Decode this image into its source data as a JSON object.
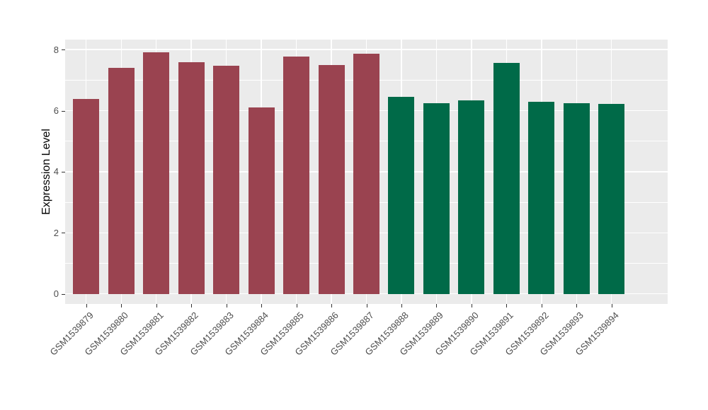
{
  "figure": {
    "background": "#FFFFFF",
    "panel_background": "#EBEBEB",
    "gridline_color": "#FFFFFF",
    "axis_text_color": "#4D4D4D",
    "axis_title_color": "#000000",
    "tick_mark_color": "#333333"
  },
  "chart_data": {
    "type": "bar",
    "title": "",
    "xlabel": "",
    "ylabel": "Expression Level",
    "categories": [
      "GSM1539879",
      "GSM1539880",
      "GSM1539881",
      "GSM1539882",
      "GSM1539883",
      "GSM1539884",
      "GSM1539885",
      "GSM1539886",
      "GSM1539887",
      "GSM1539888",
      "GSM1539889",
      "GSM1539890",
      "GSM1539891",
      "GSM1539892",
      "GSM1539893",
      "GSM1539894"
    ],
    "values": [
      6.38,
      7.41,
      7.91,
      7.58,
      7.48,
      6.1,
      7.76,
      7.49,
      7.86,
      6.44,
      6.25,
      6.34,
      7.57,
      6.3,
      6.25,
      6.21
    ],
    "bar_colors": [
      "#9A4350",
      "#9A4350",
      "#9A4350",
      "#9A4350",
      "#9A4350",
      "#9A4350",
      "#9A4350",
      "#9A4350",
      "#9A4350",
      "#006A48",
      "#006A48",
      "#006A48",
      "#006A48",
      "#006A48",
      "#006A48",
      "#006A48"
    ],
    "groups": [
      {
        "color": "#9A4350",
        "first_sample": "GSM1539879",
        "last_sample": "GSM1539887"
      },
      {
        "color": "#006A48",
        "first_sample": "GSM1539888",
        "last_sample": "GSM1539894"
      }
    ],
    "ylim": [
      0,
      8
    ],
    "yticks": [
      "0",
      "2",
      "4",
      "6",
      "8"
    ],
    "ytick_values": [
      0,
      2,
      4,
      6,
      8
    ],
    "minor_ytick_values": [
      1,
      3,
      5,
      7
    ],
    "grid": "on",
    "legend": "none"
  }
}
